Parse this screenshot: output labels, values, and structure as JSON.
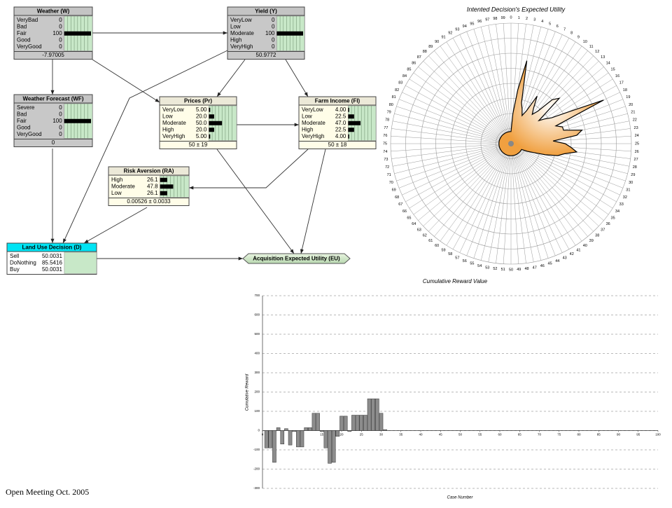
{
  "network": {
    "nodes": [
      {
        "title": "Weather (W)",
        "states": [
          {
            "name": "VeryBad",
            "value": 0
          },
          {
            "name": "Bad",
            "value": 0
          },
          {
            "name": "Fair",
            "value": 100
          },
          {
            "name": "Good",
            "value": 0
          },
          {
            "name": "VeryGood",
            "value": 0
          }
        ],
        "footer": "-7.97005"
      },
      {
        "title": "Yield (Y)",
        "states": [
          {
            "name": "VeryLow",
            "value": 0
          },
          {
            "name": "Low",
            "value": 0
          },
          {
            "name": "Moderate",
            "value": 100
          },
          {
            "name": "High",
            "value": 0
          },
          {
            "name": "VeryHigh",
            "value": 0
          }
        ],
        "footer": "50.9772"
      },
      {
        "title": "Weather Forecast (WF)",
        "states": [
          {
            "name": "Severe",
            "value": 0
          },
          {
            "name": "Bad",
            "value": 0
          },
          {
            "name": "Fair",
            "value": 100
          },
          {
            "name": "Good",
            "value": 0
          },
          {
            "name": "VeryGood",
            "value": 0
          }
        ],
        "footer": "0"
      },
      {
        "title": "Prices (Pr)",
        "states": [
          {
            "name": "VeryLow",
            "value": {
              "value": 5,
              "label": "5.00"
            }
          },
          {
            "name": "Low",
            "value": {
              "value": 20,
              "label": "20.0"
            }
          },
          {
            "name": "Moderate",
            "value": {
              "value": 50,
              "label": "50.0"
            }
          },
          {
            "name": "High",
            "value": {
              "value": 20,
              "label": "20.0"
            }
          },
          {
            "name": "VeryHigh",
            "value": {
              "value": 5,
              "label": "5.00"
            }
          }
        ],
        "footer": "50 ± 19"
      },
      {
        "title": "Farm Income (FI)",
        "states": [
          {
            "name": "VeryLow",
            "value": {
              "value": 4,
              "label": "4.00"
            }
          },
          {
            "name": "Low",
            "value": 22.5
          },
          {
            "name": "Moderate",
            "value": {
              "value": 47,
              "label": "47.0"
            }
          },
          {
            "name": "High",
            "value": 22.5
          },
          {
            "name": "VeryHigh",
            "value": {
              "value": 4,
              "label": "4.00"
            }
          }
        ],
        "footer": "50 ± 18"
      },
      {
        "title": "Risk Aversion (RA)",
        "states": [
          {
            "name": "High",
            "value": 26.1
          },
          {
            "name": "Moderate",
            "value": 47.8
          },
          {
            "name": "Low",
            "value": 26.1
          }
        ],
        "footer": "0.00526 ± 0.0033"
      },
      {
        "title": "Land Use Decision (D)",
        "states": [
          {
            "name": "Sell",
            "value": 50.0031
          },
          {
            "name": "DoNothing",
            "value": 85.5416
          },
          {
            "name": "Buy",
            "value": 50.0031
          }
        ]
      },
      {
        "title": "Acquisition Expected Utility (EU)"
      }
    ]
  },
  "chart_data": [
    {
      "type": "radar",
      "title": "Intented Decision's Expected Utility",
      "color": "#f0a040",
      "rlim": [
        0,
        1
      ],
      "categories": [
        "0",
        "1",
        "2",
        "3",
        "4",
        "5",
        "6",
        "7",
        "8",
        "9",
        "10",
        "11",
        "12",
        "13",
        "14",
        "15",
        "16",
        "17",
        "18",
        "19",
        "20",
        "21",
        "22",
        "23",
        "24",
        "25",
        "26",
        "27",
        "28",
        "29",
        "30",
        "31",
        "32",
        "33",
        "34",
        "35",
        "36",
        "37",
        "38",
        "39",
        "40",
        "41",
        "42",
        "43",
        "44",
        "45",
        "46",
        "47",
        "48",
        "49",
        "50",
        "51",
        "52",
        "53",
        "54",
        "55",
        "56",
        "57",
        "58",
        "59",
        "60",
        "61",
        "62",
        "63",
        "64",
        "65",
        "66",
        "67",
        "68",
        "69",
        "70",
        "71",
        "72",
        "73",
        "74",
        "75",
        "76",
        "77",
        "78",
        "79",
        "80",
        "81",
        "82",
        "83",
        "84",
        "85",
        "86",
        "87",
        "88",
        "89",
        "90",
        "91",
        "92",
        "93",
        "94",
        "95",
        "96",
        "97",
        "98",
        "99"
      ],
      "values": [
        0.1,
        0.25,
        0.45,
        0.7,
        0.35,
        0.3,
        0.25,
        0.3,
        0.45,
        0.35,
        0.3,
        0.35,
        0.5,
        0.55,
        0.3,
        0.35,
        0.4,
        0.55,
        0.85,
        0.4,
        0.45,
        0.45,
        0.6,
        0.55,
        0.35,
        0.45,
        0.5,
        0.55,
        0.45,
        0.4,
        0.3,
        0.2,
        0.15,
        0.1,
        0.1,
        0.1,
        0.1,
        0.1,
        0.1,
        0.1,
        0.1,
        0.1,
        0.1,
        0.1,
        0.1,
        0.1,
        0.1,
        0.1,
        0.1,
        0.1,
        0.1,
        0.1,
        0.1,
        0.1,
        0.1,
        0.1,
        0.1,
        0.1,
        0.1,
        0.1,
        0.1,
        0.1,
        0.1,
        0.1,
        0.1,
        0.1,
        0.1,
        0.1,
        0.1,
        0.1,
        0.1,
        0.1,
        0.1,
        0.1,
        0.1,
        0.1,
        0.1,
        0.1,
        0.1,
        0.1,
        0.1,
        0.1,
        0.1,
        0.1,
        0.1,
        0.1,
        0.1,
        0.1,
        0.1,
        0.1,
        0.1,
        0.1,
        0.1,
        0.1,
        0.1,
        0.1,
        0.1,
        0.1,
        0.1,
        0.1
      ]
    },
    {
      "type": "bar",
      "title": "Cumulative Reward Value",
      "x_label": "Case Number",
      "y_label": "Cumulative Reward",
      "color": "#8c8c8c",
      "grid": true,
      "x": [
        1,
        2,
        3,
        4,
        5,
        6,
        7,
        8,
        9,
        10,
        11,
        12,
        13,
        14,
        15,
        16,
        17,
        18,
        19,
        20,
        21,
        22,
        23,
        24,
        25,
        26,
        27,
        28,
        29,
        30,
        31,
        32
      ],
      "values": [
        -90,
        -90,
        -165,
        15,
        -70,
        10,
        -75,
        -5,
        -85,
        -85,
        15,
        15,
        90,
        90,
        -5,
        -90,
        -170,
        -165,
        -30,
        75,
        75,
        -5,
        80,
        80,
        80,
        80,
        165,
        165,
        165,
        90,
        5,
        0
      ],
      "xlim": [
        0,
        100
      ],
      "xticks": [
        0,
        5,
        10,
        15,
        20,
        25,
        30,
        35,
        40,
        45,
        50,
        55,
        60,
        65,
        70,
        75,
        80,
        85,
        90,
        95,
        100
      ],
      "ylim": [
        -300,
        700
      ],
      "yticks": [
        -300,
        -200,
        -100,
        0,
        100,
        200,
        300,
        400,
        500,
        600,
        700
      ]
    }
  ],
  "footer": "Open Meeting Oct. 2005"
}
